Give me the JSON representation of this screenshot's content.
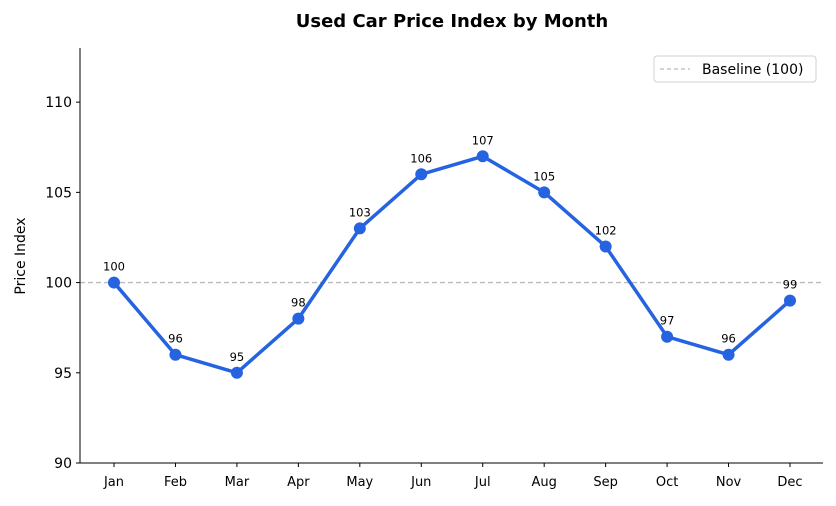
{
  "chart_data": {
    "type": "line",
    "title": "Used Car Price Index by Month",
    "xlabel": "",
    "ylabel": "Price Index",
    "categories": [
      "Jan",
      "Feb",
      "Mar",
      "Apr",
      "May",
      "Jun",
      "Jul",
      "Aug",
      "Sep",
      "Oct",
      "Nov",
      "Dec"
    ],
    "values": [
      100,
      96,
      95,
      98,
      103,
      106,
      107,
      105,
      102,
      97,
      96,
      99
    ],
    "ylim": [
      90,
      113
    ],
    "yticks": [
      90,
      95,
      100,
      105,
      110
    ],
    "grid": false,
    "legend_position": "top-right",
    "reference_line": {
      "label": "Baseline (100)",
      "value": 100,
      "style": "dashed",
      "color": "#bbbbbb"
    },
    "line_color": "#2563e0"
  }
}
